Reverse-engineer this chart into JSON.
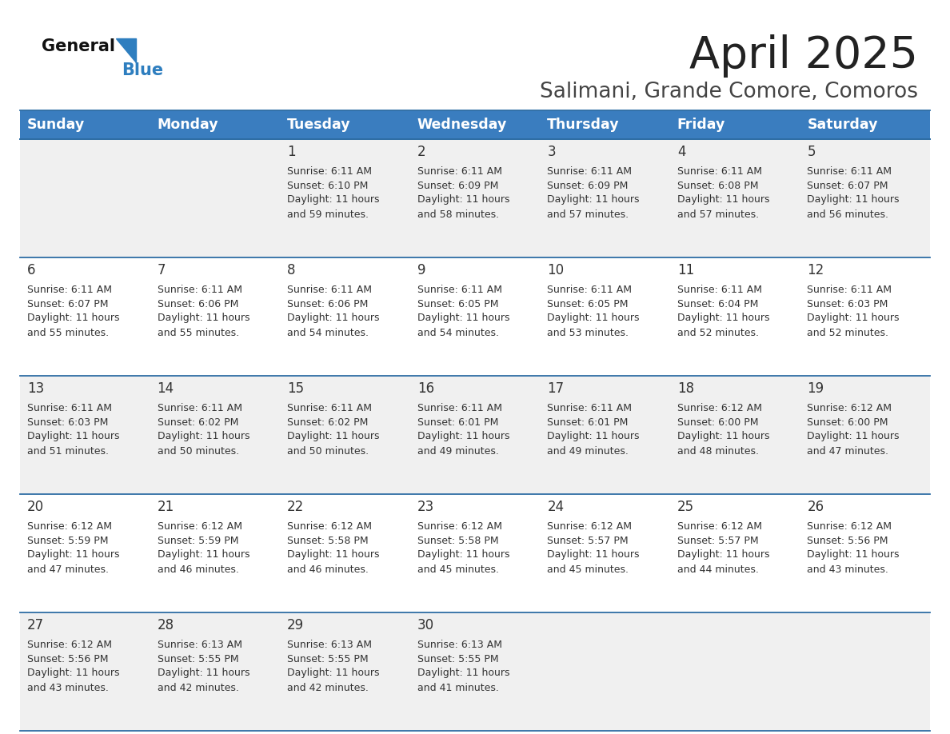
{
  "title": "April 2025",
  "subtitle": "Salimani, Grande Comore, Comoros",
  "header_bg": "#3a7dbf",
  "header_text": "#ffffff",
  "days_of_week": [
    "Sunday",
    "Monday",
    "Tuesday",
    "Wednesday",
    "Thursday",
    "Friday",
    "Saturday"
  ],
  "row_bg_even": "#f0f0f0",
  "row_bg_odd": "#ffffff",
  "cell_text_color": "#333333",
  "border_color": "#2e6da4",
  "calendar_data": [
    [
      {
        "day": "",
        "sunrise": "",
        "sunset": "",
        "daylight": ""
      },
      {
        "day": "",
        "sunrise": "",
        "sunset": "",
        "daylight": ""
      },
      {
        "day": "1",
        "sunrise": "Sunrise: 6:11 AM",
        "sunset": "Sunset: 6:10 PM",
        "daylight": "Daylight: 11 hours\nand 59 minutes."
      },
      {
        "day": "2",
        "sunrise": "Sunrise: 6:11 AM",
        "sunset": "Sunset: 6:09 PM",
        "daylight": "Daylight: 11 hours\nand 58 minutes."
      },
      {
        "day": "3",
        "sunrise": "Sunrise: 6:11 AM",
        "sunset": "Sunset: 6:09 PM",
        "daylight": "Daylight: 11 hours\nand 57 minutes."
      },
      {
        "day": "4",
        "sunrise": "Sunrise: 6:11 AM",
        "sunset": "Sunset: 6:08 PM",
        "daylight": "Daylight: 11 hours\nand 57 minutes."
      },
      {
        "day": "5",
        "sunrise": "Sunrise: 6:11 AM",
        "sunset": "Sunset: 6:07 PM",
        "daylight": "Daylight: 11 hours\nand 56 minutes."
      }
    ],
    [
      {
        "day": "6",
        "sunrise": "Sunrise: 6:11 AM",
        "sunset": "Sunset: 6:07 PM",
        "daylight": "Daylight: 11 hours\nand 55 minutes."
      },
      {
        "day": "7",
        "sunrise": "Sunrise: 6:11 AM",
        "sunset": "Sunset: 6:06 PM",
        "daylight": "Daylight: 11 hours\nand 55 minutes."
      },
      {
        "day": "8",
        "sunrise": "Sunrise: 6:11 AM",
        "sunset": "Sunset: 6:06 PM",
        "daylight": "Daylight: 11 hours\nand 54 minutes."
      },
      {
        "day": "9",
        "sunrise": "Sunrise: 6:11 AM",
        "sunset": "Sunset: 6:05 PM",
        "daylight": "Daylight: 11 hours\nand 54 minutes."
      },
      {
        "day": "10",
        "sunrise": "Sunrise: 6:11 AM",
        "sunset": "Sunset: 6:05 PM",
        "daylight": "Daylight: 11 hours\nand 53 minutes."
      },
      {
        "day": "11",
        "sunrise": "Sunrise: 6:11 AM",
        "sunset": "Sunset: 6:04 PM",
        "daylight": "Daylight: 11 hours\nand 52 minutes."
      },
      {
        "day": "12",
        "sunrise": "Sunrise: 6:11 AM",
        "sunset": "Sunset: 6:03 PM",
        "daylight": "Daylight: 11 hours\nand 52 minutes."
      }
    ],
    [
      {
        "day": "13",
        "sunrise": "Sunrise: 6:11 AM",
        "sunset": "Sunset: 6:03 PM",
        "daylight": "Daylight: 11 hours\nand 51 minutes."
      },
      {
        "day": "14",
        "sunrise": "Sunrise: 6:11 AM",
        "sunset": "Sunset: 6:02 PM",
        "daylight": "Daylight: 11 hours\nand 50 minutes."
      },
      {
        "day": "15",
        "sunrise": "Sunrise: 6:11 AM",
        "sunset": "Sunset: 6:02 PM",
        "daylight": "Daylight: 11 hours\nand 50 minutes."
      },
      {
        "day": "16",
        "sunrise": "Sunrise: 6:11 AM",
        "sunset": "Sunset: 6:01 PM",
        "daylight": "Daylight: 11 hours\nand 49 minutes."
      },
      {
        "day": "17",
        "sunrise": "Sunrise: 6:11 AM",
        "sunset": "Sunset: 6:01 PM",
        "daylight": "Daylight: 11 hours\nand 49 minutes."
      },
      {
        "day": "18",
        "sunrise": "Sunrise: 6:12 AM",
        "sunset": "Sunset: 6:00 PM",
        "daylight": "Daylight: 11 hours\nand 48 minutes."
      },
      {
        "day": "19",
        "sunrise": "Sunrise: 6:12 AM",
        "sunset": "Sunset: 6:00 PM",
        "daylight": "Daylight: 11 hours\nand 47 minutes."
      }
    ],
    [
      {
        "day": "20",
        "sunrise": "Sunrise: 6:12 AM",
        "sunset": "Sunset: 5:59 PM",
        "daylight": "Daylight: 11 hours\nand 47 minutes."
      },
      {
        "day": "21",
        "sunrise": "Sunrise: 6:12 AM",
        "sunset": "Sunset: 5:59 PM",
        "daylight": "Daylight: 11 hours\nand 46 minutes."
      },
      {
        "day": "22",
        "sunrise": "Sunrise: 6:12 AM",
        "sunset": "Sunset: 5:58 PM",
        "daylight": "Daylight: 11 hours\nand 46 minutes."
      },
      {
        "day": "23",
        "sunrise": "Sunrise: 6:12 AM",
        "sunset": "Sunset: 5:58 PM",
        "daylight": "Daylight: 11 hours\nand 45 minutes."
      },
      {
        "day": "24",
        "sunrise": "Sunrise: 6:12 AM",
        "sunset": "Sunset: 5:57 PM",
        "daylight": "Daylight: 11 hours\nand 45 minutes."
      },
      {
        "day": "25",
        "sunrise": "Sunrise: 6:12 AM",
        "sunset": "Sunset: 5:57 PM",
        "daylight": "Daylight: 11 hours\nand 44 minutes."
      },
      {
        "day": "26",
        "sunrise": "Sunrise: 6:12 AM",
        "sunset": "Sunset: 5:56 PM",
        "daylight": "Daylight: 11 hours\nand 43 minutes."
      }
    ],
    [
      {
        "day": "27",
        "sunrise": "Sunrise: 6:12 AM",
        "sunset": "Sunset: 5:56 PM",
        "daylight": "Daylight: 11 hours\nand 43 minutes."
      },
      {
        "day": "28",
        "sunrise": "Sunrise: 6:13 AM",
        "sunset": "Sunset: 5:55 PM",
        "daylight": "Daylight: 11 hours\nand 42 minutes."
      },
      {
        "day": "29",
        "sunrise": "Sunrise: 6:13 AM",
        "sunset": "Sunset: 5:55 PM",
        "daylight": "Daylight: 11 hours\nand 42 minutes."
      },
      {
        "day": "30",
        "sunrise": "Sunrise: 6:13 AM",
        "sunset": "Sunset: 5:55 PM",
        "daylight": "Daylight: 11 hours\nand 41 minutes."
      },
      {
        "day": "",
        "sunrise": "",
        "sunset": "",
        "daylight": ""
      },
      {
        "day": "",
        "sunrise": "",
        "sunset": "",
        "daylight": ""
      },
      {
        "day": "",
        "sunrise": "",
        "sunset": "",
        "daylight": ""
      }
    ]
  ],
  "logo_general_color": "#111111",
  "logo_blue_color": "#2e7ebf",
  "logo_triangle_color": "#2e7ebf",
  "title_color": "#222222",
  "subtitle_color": "#444444"
}
